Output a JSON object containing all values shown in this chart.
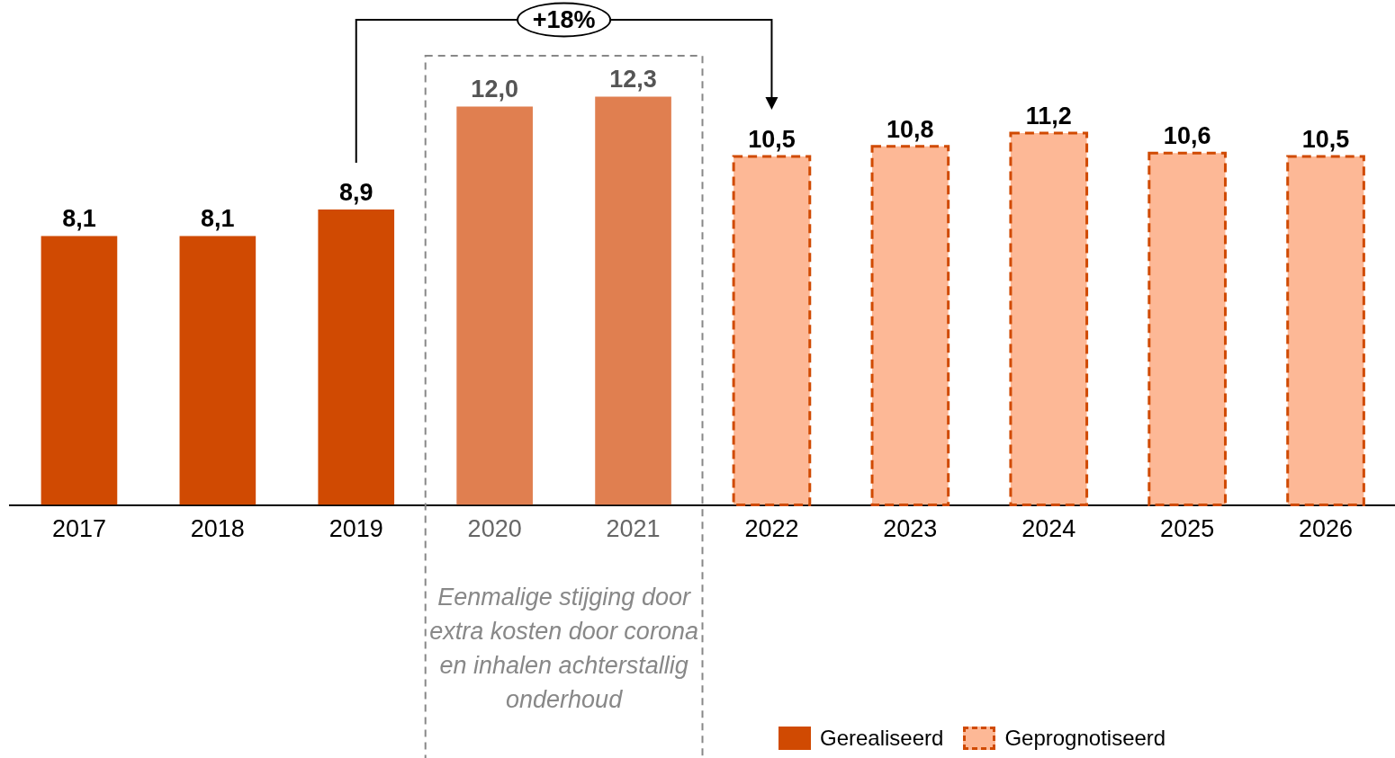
{
  "chart_data": {
    "type": "bar",
    "categories": [
      "2017",
      "2018",
      "2019",
      "2020",
      "2021",
      "2022",
      "2023",
      "2024",
      "2025",
      "2026"
    ],
    "series": [
      {
        "name": "Gerealiseerd",
        "color": "#d04a02",
        "values": [
          8.1,
          8.1,
          8.9,
          null,
          null,
          null,
          null,
          null,
          null,
          null
        ],
        "value_labels": [
          "8,1",
          "8,1",
          "8,9",
          null,
          null,
          null,
          null,
          null,
          null,
          null
        ]
      },
      {
        "color": "#e07f50",
        "values": [
          null,
          null,
          null,
          12.0,
          12.3,
          null,
          null,
          null,
          null,
          null
        ],
        "value_labels": [
          null,
          null,
          null,
          "12,0",
          "12,3",
          null,
          null,
          null,
          null,
          null
        ]
      },
      {
        "name": "Geprognotiseerd",
        "color": "#fdb896",
        "line_style": "dashed",
        "values": [
          null,
          null,
          null,
          null,
          null,
          10.5,
          10.8,
          11.2,
          10.6,
          10.5
        ],
        "value_labels": [
          null,
          null,
          null,
          null,
          null,
          "10,5",
          "10,8",
          "11,2",
          "10,6",
          "10,5"
        ]
      }
    ],
    "annotations": [
      "+18%",
      "Eenmalige stijging door extra kosten door corona en inhalen achterstallig onderhoud"
    ],
    "legend": "bottom right"
  }
}
